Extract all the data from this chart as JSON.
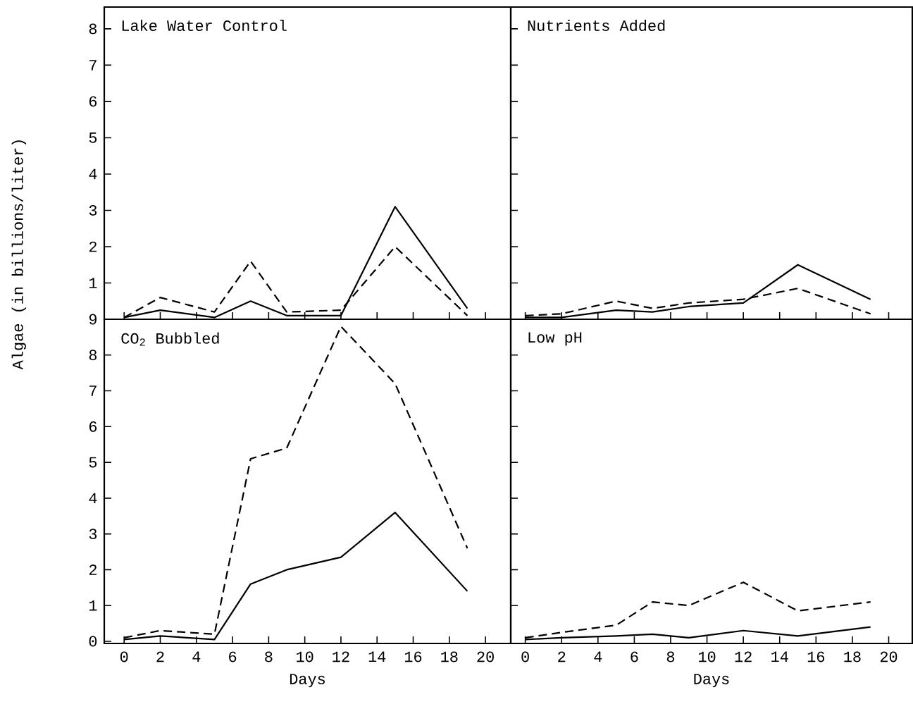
{
  "chart_data": [
    {
      "type": "line",
      "title": "Lake Water Control",
      "ylabel": "Algae (in billions/liter)",
      "x": [
        0,
        2,
        5,
        7,
        9,
        12,
        15,
        19
      ],
      "xlim": [
        -1.1,
        21.4
      ],
      "xticks": [
        0,
        2,
        4,
        6,
        8,
        10,
        12,
        14,
        16,
        18,
        20
      ],
      "ylim": [
        0,
        8.6
      ],
      "yticks": [
        1,
        2,
        3,
        4,
        5,
        6,
        7,
        8
      ],
      "tick_labels": "y",
      "grid": false,
      "marker": "none",
      "series": [
        {
          "color": "#000000",
          "line_style": "solid",
          "values": [
            0.05,
            0.25,
            0.05,
            0.5,
            0.1,
            0.1,
            3.1,
            0.3
          ]
        },
        {
          "color": "#000000",
          "line_style": "dashed",
          "values": [
            0.05,
            0.6,
            0.2,
            1.6,
            0.2,
            0.25,
            2.0,
            0.1
          ]
        }
      ]
    },
    {
      "type": "line",
      "title": "Nutrients Added",
      "x": [
        0,
        2,
        5,
        7,
        9,
        12,
        15,
        19
      ],
      "xlim": [
        -0.8,
        21.3
      ],
      "xticks": [
        0,
        2,
        4,
        6,
        8,
        10,
        12,
        14,
        16,
        18,
        20
      ],
      "ylim": [
        0,
        8.6
      ],
      "yticks": [
        1,
        2,
        3,
        4,
        5,
        6,
        7,
        8
      ],
      "tick_labels": false,
      "grid": false,
      "marker": "none",
      "series": [
        {
          "color": "#000000",
          "line_style": "solid",
          "values": [
            0.05,
            0.05,
            0.25,
            0.2,
            0.35,
            0.45,
            1.5,
            0.55
          ]
        },
        {
          "color": "#000000",
          "line_style": "dashed",
          "values": [
            0.1,
            0.15,
            0.5,
            0.3,
            0.45,
            0.55,
            0.85,
            0.15
          ]
        }
      ]
    },
    {
      "type": "line",
      "title": "CO$_{2}$ Bubbled",
      "xlabel": "Days",
      "x": [
        0,
        2,
        5,
        7,
        9,
        12,
        15,
        19
      ],
      "xlim": [
        -1.1,
        21.4
      ],
      "xticks": [
        0,
        2,
        4,
        6,
        8,
        10,
        12,
        14,
        16,
        18,
        20
      ],
      "ylim": [
        -0.06,
        9
      ],
      "yticks": [
        0,
        1,
        2,
        3,
        4,
        5,
        6,
        7,
        8,
        9
      ],
      "grid": false,
      "marker": "none",
      "series": [
        {
          "color": "#000000",
          "line_style": "solid",
          "values": [
            0.05,
            0.15,
            0.05,
            1.6,
            2.0,
            2.35,
            3.6,
            1.4
          ]
        },
        {
          "color": "#000000",
          "line_style": "dashed",
          "values": [
            0.1,
            0.3,
            0.2,
            5.1,
            5.4,
            8.8,
            7.2,
            2.6
          ]
        }
      ]
    },
    {
      "type": "line",
      "title": "Low pH",
      "xlabel": "Days",
      "x": [
        0,
        2,
        5,
        7,
        9,
        12,
        15,
        19
      ],
      "xlim": [
        -0.8,
        21.3
      ],
      "xticks": [
        0,
        2,
        4,
        6,
        8,
        10,
        12,
        14,
        16,
        18,
        20
      ],
      "ylim": [
        -0.06,
        9
      ],
      "yticks": [
        1,
        2,
        3,
        4,
        5,
        6,
        7,
        8
      ],
      "tick_labels": "x",
      "grid": false,
      "marker": "none",
      "series": [
        {
          "color": "#000000",
          "line_style": "solid",
          "values": [
            0.05,
            0.1,
            0.15,
            0.2,
            0.1,
            0.3,
            0.15,
            0.4
          ]
        },
        {
          "color": "#000000",
          "line_style": "dashed",
          "values": [
            0.1,
            0.25,
            0.45,
            1.1,
            1.0,
            1.65,
            0.85,
            1.1
          ]
        }
      ]
    }
  ]
}
